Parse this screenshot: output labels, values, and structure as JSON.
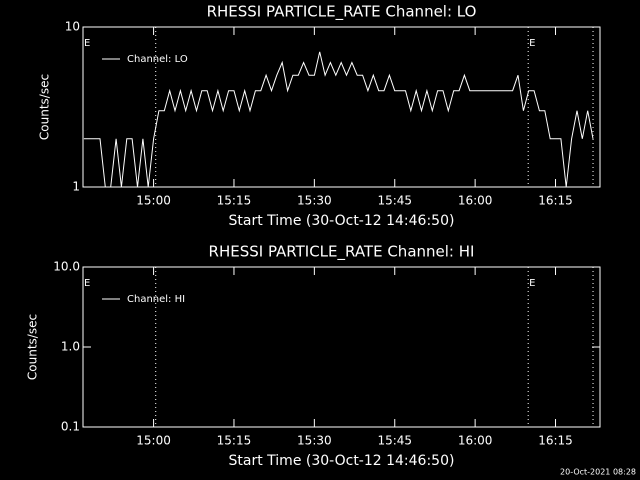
{
  "chart_data": [
    {
      "type": "line",
      "title": "RHESSI PARTICLE_RATE Channel: LO",
      "ylabel": "Counts/sec",
      "xlabel": "Start Time (30-Oct-12 14:46:50)",
      "log_y": true,
      "ylim": [
        1,
        10
      ],
      "yticks": [
        1,
        10
      ],
      "xlim": [
        886.83,
        983.3
      ],
      "xticks": [
        {
          "value": 900,
          "label": "15:00"
        },
        {
          "value": 915,
          "label": "15:15"
        },
        {
          "value": 930,
          "label": "15:30"
        },
        {
          "value": 945,
          "label": "15:45"
        },
        {
          "value": 960,
          "label": "16:00"
        },
        {
          "value": 975,
          "label": "16:15"
        }
      ],
      "flag_lines": [
        900.4,
        969.9,
        982.0
      ],
      "flags": [
        {
          "x": 886.83,
          "label": "E"
        },
        {
          "x": 969.9,
          "label": "E"
        }
      ],
      "series": [
        {
          "name": "Channel: LO",
          "color": "#ffffff",
          "x": [
            887,
            888,
            889,
            890,
            891,
            892,
            893,
            894,
            895,
            896,
            897,
            898,
            899,
            900,
            901,
            902,
            903,
            904,
            905,
            906,
            907,
            908,
            909,
            910,
            911,
            912,
            913,
            914,
            915,
            916,
            917,
            918,
            919,
            920,
            921,
            922,
            923,
            924,
            925,
            926,
            927,
            928,
            929,
            930,
            931,
            932,
            933,
            934,
            935,
            936,
            937,
            938,
            939,
            940,
            941,
            942,
            943,
            944,
            945,
            946,
            947,
            948,
            949,
            950,
            951,
            952,
            953,
            954,
            955,
            956,
            957,
            958,
            959,
            960,
            961,
            962,
            963,
            964,
            965,
            966,
            967,
            968,
            969,
            970,
            971,
            972,
            973,
            974,
            975,
            976,
            977,
            978,
            979,
            980,
            981,
            982
          ],
          "values": [
            2,
            2,
            2,
            2,
            1,
            1,
            2,
            1,
            2,
            2,
            1,
            2,
            1,
            2,
            3,
            3,
            4,
            3,
            4,
            3,
            4,
            3,
            4,
            4,
            3,
            4,
            3,
            4,
            4,
            3,
            4,
            3,
            4,
            4,
            5,
            4,
            5,
            6,
            4,
            5,
            5,
            6,
            5,
            5,
            7,
            5,
            6,
            5,
            6,
            5,
            6,
            5,
            5,
            4,
            5,
            4,
            4,
            5,
            4,
            4,
            4,
            3,
            4,
            3,
            4,
            3,
            4,
            4,
            3,
            4,
            4,
            5,
            4,
            4,
            4,
            4,
            4,
            4,
            4,
            4,
            4,
            5,
            3,
            4,
            4,
            3,
            3,
            2,
            2,
            2,
            1,
            2,
            3,
            2,
            3,
            2
          ]
        }
      ]
    },
    {
      "type": "line",
      "title": "RHESSI PARTICLE_RATE Channel: HI",
      "ylabel": "Counts/sec",
      "xlabel": "Start Time (30-Oct-12 14:46:50)",
      "log_y": true,
      "ylim": [
        0.1,
        10
      ],
      "yticks": [
        0.1,
        {
          "value": 1,
          "label": "1.0"
        },
        {
          "value": 10,
          "label": "10.0"
        }
      ],
      "xlim": [
        886.83,
        983.3
      ],
      "xticks": [
        {
          "value": 900,
          "label": "15:00"
        },
        {
          "value": 915,
          "label": "15:15"
        },
        {
          "value": 930,
          "label": "15:30"
        },
        {
          "value": 945,
          "label": "15:45"
        },
        {
          "value": 960,
          "label": "16:00"
        },
        {
          "value": 975,
          "label": "16:15"
        }
      ],
      "flag_lines": [
        900.4,
        969.9,
        982.0
      ],
      "flags": [
        {
          "x": 886.83,
          "label": "E"
        },
        {
          "x": 969.9,
          "label": "E"
        }
      ],
      "series": [
        {
          "name": "Channel: HI",
          "color": "#ffffff",
          "x": [],
          "values": []
        }
      ]
    }
  ],
  "footer": "20-Oct-2021 08:28"
}
